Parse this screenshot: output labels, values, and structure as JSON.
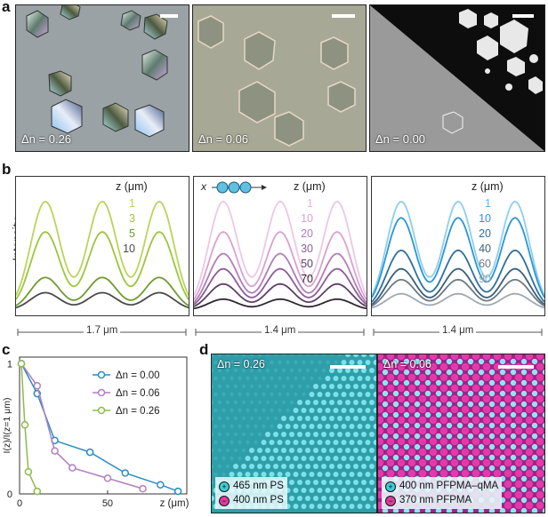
{
  "panel_labels": {
    "a": "a",
    "b": "b",
    "c": "c",
    "d": "d"
  },
  "panel_a": [
    {
      "dn": "Δn = 0.26",
      "bg": "#9aa2a6"
    },
    {
      "dn": "Δn = 0.06",
      "bg": "#a8a896"
    },
    {
      "dn": "Δn = 0.00",
      "bg": "#9a9a9a"
    }
  ],
  "panel_b": {
    "ylabel": "Intensity",
    "sub": [
      {
        "z_header": "z (μm)",
        "z_values": [
          "1",
          "3",
          "5",
          "10"
        ],
        "colors": [
          "#b9d45a",
          "#9cc63c",
          "#6f9a31",
          "#4a4a4a"
        ],
        "dimension": "1.7 μm",
        "amplitudes": [
          1.0,
          0.72,
          0.3,
          0.16
        ]
      },
      {
        "z_header": "z (μm)",
        "z_values": [
          "1",
          "10",
          "20",
          "30",
          "50",
          "70"
        ],
        "colors": [
          "#ecc8e4",
          "#d7a2d2",
          "#b27db8",
          "#8d5d97",
          "#5c3f67",
          "#2e2730"
        ],
        "dimension": "1.4 μm",
        "amplitudes": [
          1.0,
          0.72,
          0.52,
          0.38,
          0.24,
          0.1
        ]
      },
      {
        "z_header": "z (μm)",
        "z_values": [
          "1",
          "10",
          "20",
          "40",
          "60",
          "90"
        ],
        "colors": [
          "#8ccff0",
          "#2a96d2",
          "#2f6f9c",
          "#3a5f7a",
          "#6b7a86",
          "#a0a8ae"
        ],
        "dimension": "1.4 μm",
        "amplitudes": [
          1.0,
          0.85,
          0.55,
          0.38,
          0.28,
          0.15
        ]
      }
    ],
    "inset_axis": "x"
  },
  "chart_data": {
    "type": "line",
    "title": "",
    "xlabel": "z (μm)",
    "ylabel": "I(z)/I(z=1 μm)",
    "xlim": [
      0,
      95
    ],
    "ylim": [
      0,
      1.05
    ],
    "x_ticks": [
      "0",
      "50"
    ],
    "y_ticks": [
      "1",
      "0"
    ],
    "series": [
      {
        "name": "Δn = 0.00",
        "color": "#2a8cc4",
        "x": [
          1,
          10,
          20,
          40,
          60,
          80,
          90
        ],
        "y": [
          1.0,
          0.77,
          0.41,
          0.32,
          0.16,
          0.07,
          0.02
        ]
      },
      {
        "name": "Δn = 0.06",
        "color": "#b07ec0",
        "x": [
          1,
          10,
          20,
          30,
          50,
          70
        ],
        "y": [
          1.0,
          0.83,
          0.33,
          0.2,
          0.12,
          0.04
        ]
      },
      {
        "name": "Δn = 0.26",
        "color": "#8fba4c",
        "x": [
          1,
          3,
          5,
          10
        ],
        "y": [
          1.0,
          0.53,
          0.17,
          0.02
        ]
      }
    ]
  },
  "panel_d": [
    {
      "dn": "Δn = 0.26",
      "legend": [
        {
          "sign": "+",
          "text": "465 nm PS",
          "color": "#3fd0d8"
        },
        {
          "sign": "−",
          "text": "400 nm PS",
          "color": "#e03aa0"
        }
      ]
    },
    {
      "dn": "Δn = 0.06",
      "legend": [
        {
          "sign": "+",
          "text": "400 nm PFPMA–qMA",
          "color": "#3fd0d8"
        },
        {
          "sign": "−",
          "text": "370 nm PFPMA",
          "color": "#e03aa0"
        }
      ]
    }
  ]
}
